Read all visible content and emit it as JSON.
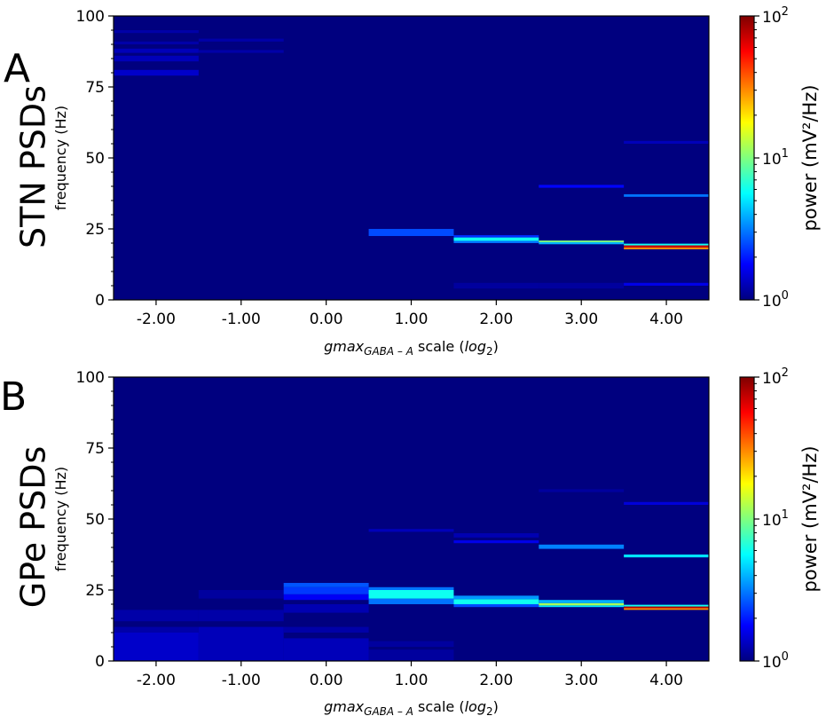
{
  "colors": {
    "background": "#00007f",
    "colormap": [
      "#00007f",
      "#0000ff",
      "#007fff",
      "#00ffff",
      "#7fff7f",
      "#ffff00",
      "#ff7f00",
      "#ff0000",
      "#7f0000"
    ]
  },
  "chart_data": [
    {
      "type": "heatmap",
      "panel_label": "A",
      "side_title": "STN PSDs",
      "xlabel_main": "gmax",
      "xlabel_sub": "GABA – A",
      "xlabel_mid": " scale (",
      "xlabel_log": "log",
      "xlabel_log_sub": "2",
      "xlabel_end": ")",
      "ylabel": "frequency (Hz)",
      "x_columns": [
        -2,
        -1,
        0,
        1,
        2,
        3,
        4
      ],
      "x_ticks": [
        "-2.00",
        "-1.00",
        "0.00",
        "1.00",
        "2.00",
        "3.00",
        "4.00"
      ],
      "xlim": [
        -2.5,
        4.5
      ],
      "ylim": [
        0,
        100
      ],
      "y_ticks": [
        "0",
        "25",
        "50",
        "75",
        "100"
      ],
      "colorbar": {
        "label": "power (mV²/Hz)",
        "scale": "log",
        "range": [
          1,
          100
        ],
        "ticks": [
          {
            "base": "10",
            "exp": "0"
          },
          {
            "base": "10",
            "exp": "1"
          },
          {
            "base": "10",
            "exp": "2"
          }
        ]
      },
      "bands": [
        {
          "x": -2,
          "f0": 79,
          "f1": 81,
          "power": 1.4
        },
        {
          "x": -2,
          "f0": 84,
          "f1": 86,
          "power": 1.3
        },
        {
          "x": -2,
          "f0": 87,
          "f1": 88.5,
          "power": 1.3
        },
        {
          "x": -2,
          "f0": 90,
          "f1": 91,
          "power": 1.2
        },
        {
          "x": -2,
          "f0": 94,
          "f1": 95,
          "power": 1.2
        },
        {
          "x": -1,
          "f0": 87,
          "f1": 88,
          "power": 1.2
        },
        {
          "x": -1,
          "f0": 91,
          "f1": 92,
          "power": 1.2
        },
        {
          "x": 1,
          "f0": 22.5,
          "f1": 25,
          "power": 2.5
        },
        {
          "x": 2,
          "f0": 4,
          "f1": 6,
          "power": 1.15
        },
        {
          "x": 2,
          "f0": 20,
          "f1": 20.8,
          "power": 3
        },
        {
          "x": 2,
          "f0": 20.8,
          "f1": 22,
          "power": 6
        },
        {
          "x": 2,
          "f0": 22,
          "f1": 22.8,
          "power": 2.2
        },
        {
          "x": 3,
          "f0": 4,
          "f1": 6,
          "power": 1.15
        },
        {
          "x": 3,
          "f0": 19.6,
          "f1": 20.3,
          "power": 4
        },
        {
          "x": 3,
          "f0": 20.3,
          "f1": 20.9,
          "power": 10
        },
        {
          "x": 3,
          "f0": 39.5,
          "f1": 40.5,
          "power": 1.8
        },
        {
          "x": 4,
          "f0": 5,
          "f1": 6,
          "power": 1.6
        },
        {
          "x": 4,
          "f0": 17.8,
          "f1": 18.5,
          "power": 30
        },
        {
          "x": 4,
          "f0": 18.5,
          "f1": 19.2,
          "power": 70
        },
        {
          "x": 4,
          "f0": 19.2,
          "f1": 19.8,
          "power": 6
        },
        {
          "x": 4,
          "f0": 36.3,
          "f1": 37.2,
          "power": 3
        },
        {
          "x": 4,
          "f0": 55,
          "f1": 56,
          "power": 1.3
        }
      ]
    },
    {
      "type": "heatmap",
      "panel_label": "B",
      "side_title": "GPe PSDs",
      "xlabel_main": "gmax",
      "xlabel_sub": "GABA – A",
      "xlabel_mid": " scale (",
      "xlabel_log": "log",
      "xlabel_log_sub": "2",
      "xlabel_end": ")",
      "ylabel": "frequency (Hz)",
      "x_columns": [
        -2,
        -1,
        0,
        1,
        2,
        3,
        4
      ],
      "x_ticks": [
        "-2.00",
        "-1.00",
        "0.00",
        "1.00",
        "2.00",
        "3.00",
        "4.00"
      ],
      "xlim": [
        -2.5,
        4.5
      ],
      "ylim": [
        0,
        100
      ],
      "y_ticks": [
        "0",
        "25",
        "50",
        "75",
        "100"
      ],
      "colorbar": {
        "label": "power (mV²/Hz)",
        "scale": "log",
        "range": [
          1,
          100
        ],
        "ticks": [
          {
            "base": "10",
            "exp": "0"
          },
          {
            "base": "10",
            "exp": "1"
          },
          {
            "base": "10",
            "exp": "2"
          }
        ]
      },
      "bands": [
        {
          "x": -2,
          "f0": 0,
          "f1": 10,
          "power": 1.4
        },
        {
          "x": -2,
          "f0": 10,
          "f1": 12,
          "power": 1.2
        },
        {
          "x": -2,
          "f0": 14,
          "f1": 18,
          "power": 1.2
        },
        {
          "x": -1,
          "f0": 0,
          "f1": 12,
          "power": 1.3
        },
        {
          "x": -1,
          "f0": 14,
          "f1": 18,
          "power": 1.2
        },
        {
          "x": -1,
          "f0": 22,
          "f1": 25,
          "power": 1.15
        },
        {
          "x": 0,
          "f0": 0,
          "f1": 8,
          "power": 1.3
        },
        {
          "x": 0,
          "f0": 10,
          "f1": 12,
          "power": 1.2
        },
        {
          "x": 0,
          "f0": 17,
          "f1": 20,
          "power": 1.25
        },
        {
          "x": 0,
          "f0": 21.5,
          "f1": 23.5,
          "power": 1.7
        },
        {
          "x": 0,
          "f0": 23.5,
          "f1": 26,
          "power": 2.3
        },
        {
          "x": 0,
          "f0": 26,
          "f1": 27.5,
          "power": 2.6
        },
        {
          "x": 1,
          "f0": 0,
          "f1": 4,
          "power": 1.15
        },
        {
          "x": 1,
          "f0": 5,
          "f1": 7,
          "power": 1.15
        },
        {
          "x": 1,
          "f0": 20,
          "f1": 22,
          "power": 3
        },
        {
          "x": 1,
          "f0": 22,
          "f1": 25,
          "power": 6
        },
        {
          "x": 1,
          "f0": 25,
          "f1": 26,
          "power": 3
        },
        {
          "x": 1,
          "f0": 45.5,
          "f1": 46.5,
          "power": 1.3
        },
        {
          "x": 2,
          "f0": 19,
          "f1": 20,
          "power": 2.5
        },
        {
          "x": 2,
          "f0": 20,
          "f1": 21.8,
          "power": 6
        },
        {
          "x": 2,
          "f0": 21.8,
          "f1": 23,
          "power": 3.5
        },
        {
          "x": 2,
          "f0": 41.5,
          "f1": 42.5,
          "power": 1.6
        },
        {
          "x": 2,
          "f0": 43.5,
          "f1": 45,
          "power": 1.25
        },
        {
          "x": 3,
          "f0": 19,
          "f1": 19.6,
          "power": 5
        },
        {
          "x": 3,
          "f0": 19.6,
          "f1": 20.4,
          "power": 12
        },
        {
          "x": 3,
          "f0": 20.4,
          "f1": 21.5,
          "power": 4
        },
        {
          "x": 3,
          "f0": 39.5,
          "f1": 41,
          "power": 3.2
        },
        {
          "x": 3,
          "f0": 59.5,
          "f1": 60.5,
          "power": 1.15
        },
        {
          "x": 4,
          "f0": 18,
          "f1": 18.6,
          "power": 30
        },
        {
          "x": 4,
          "f0": 18.6,
          "f1": 19.2,
          "power": 80
        },
        {
          "x": 4,
          "f0": 19.2,
          "f1": 19.8,
          "power": 6
        },
        {
          "x": 4,
          "f0": 36.5,
          "f1": 37.5,
          "power": 5
        },
        {
          "x": 4,
          "f0": 55,
          "f1": 56,
          "power": 1.5
        }
      ]
    }
  ]
}
